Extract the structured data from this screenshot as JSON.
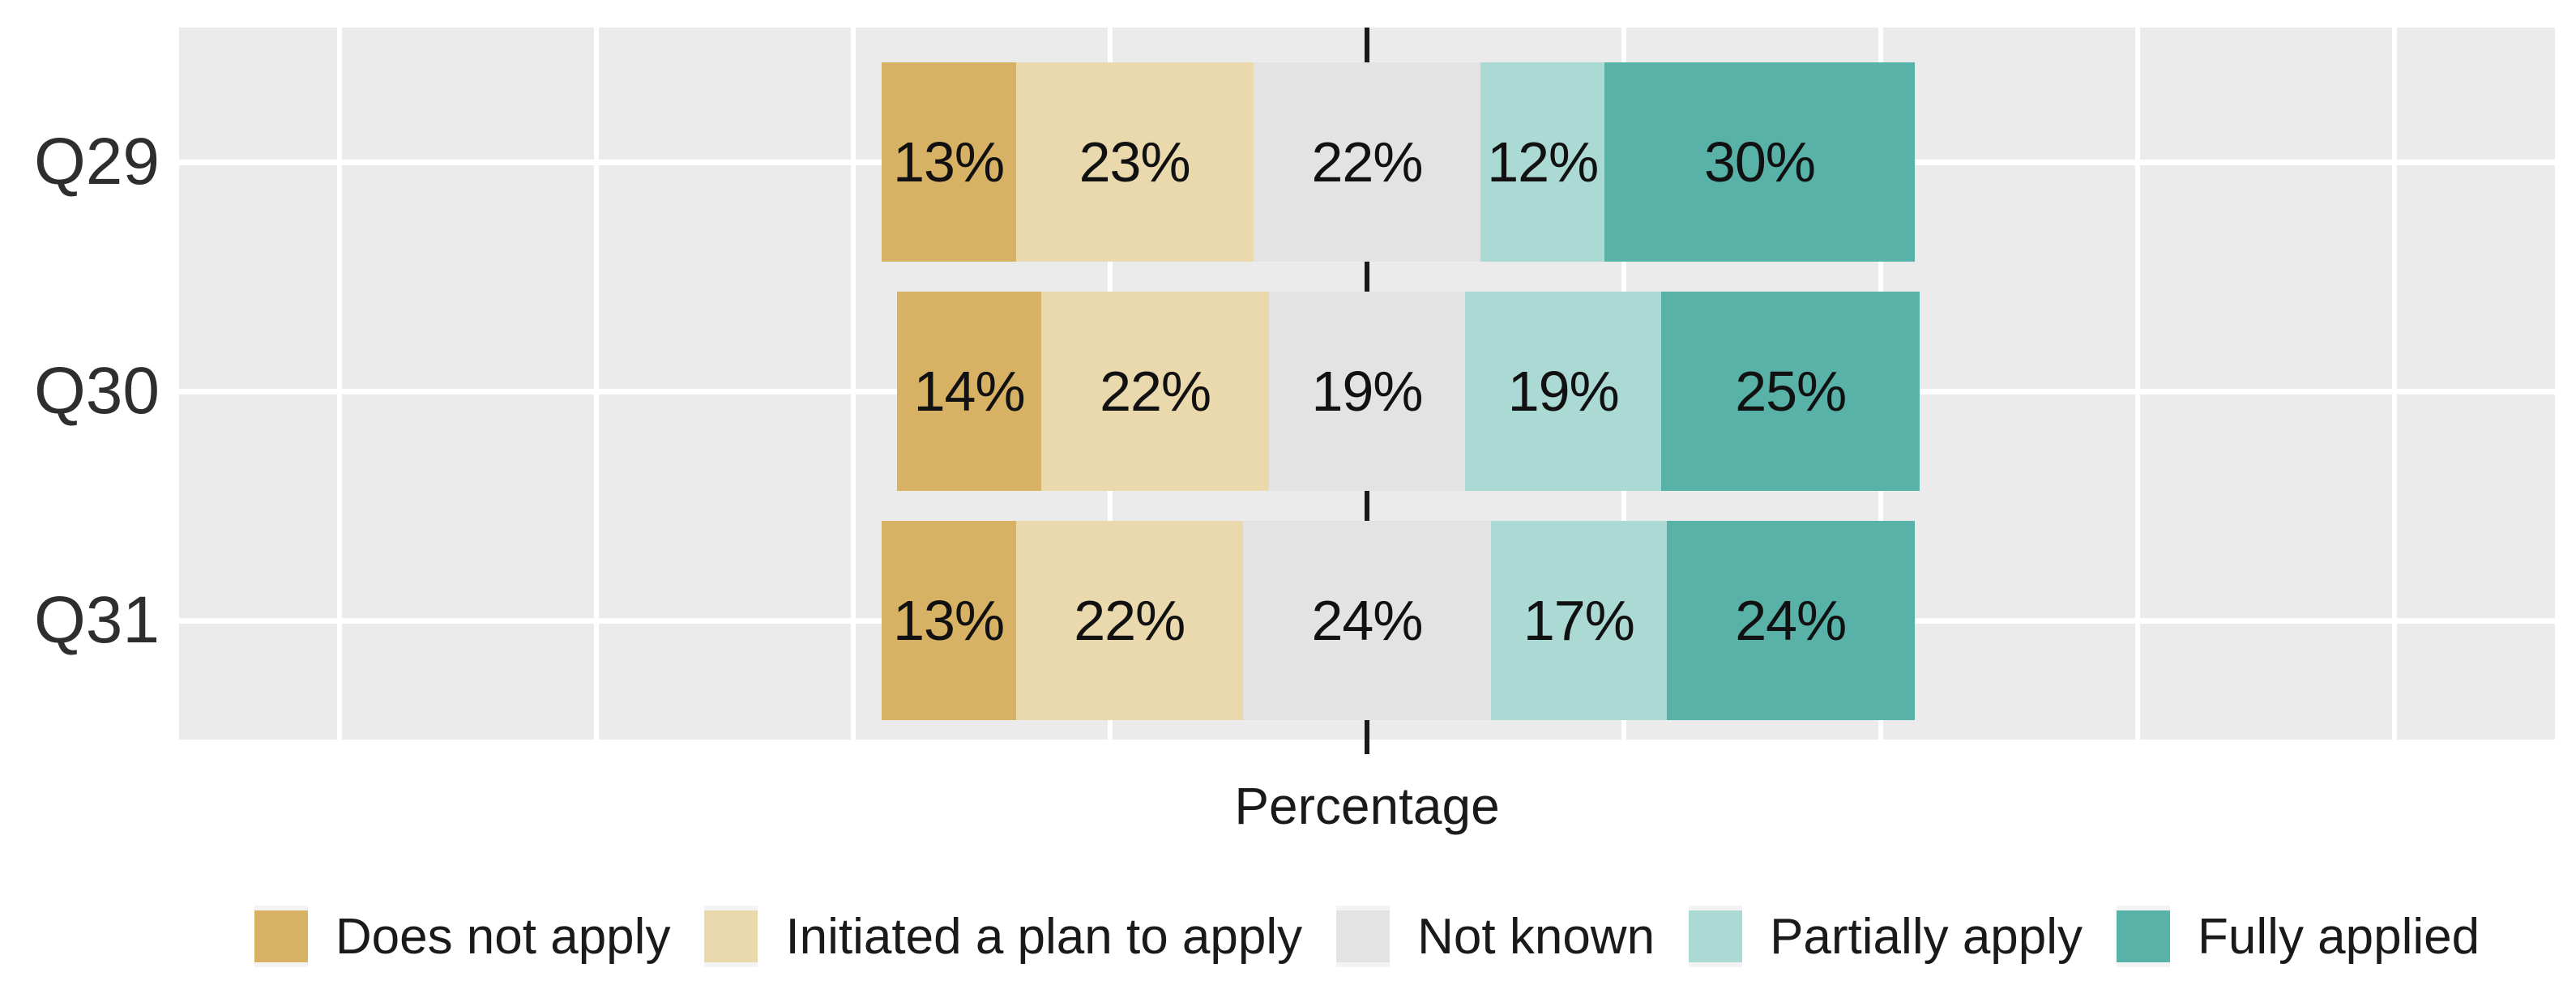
{
  "chart_data": {
    "type": "bar",
    "subtype": "diverging-stacked-likert-horizontal",
    "title": "",
    "xlabel": "Percentage",
    "ylabel": "",
    "categories": [
      "Q29",
      "Q30",
      "Q31"
    ],
    "series": [
      {
        "name": "Does not apply",
        "color": "#d7b164",
        "values": [
          13,
          14,
          13
        ]
      },
      {
        "name": "Initiated a plan to apply",
        "color": "#ebd9ae",
        "values": [
          23,
          22,
          22
        ]
      },
      {
        "name": "Not known",
        "color": "#e3e3e3",
        "values": [
          22,
          19,
          24
        ]
      },
      {
        "name": "Partially apply",
        "color": "#abd9d3",
        "values": [
          12,
          19,
          17
        ]
      },
      {
        "name": "Fully applied",
        "color": "#58b2a8",
        "values": [
          30,
          25,
          24
        ]
      }
    ],
    "value_suffix": "%",
    "bar_labels": [
      [
        "13%",
        "23%",
        "22%",
        "12%",
        "30%"
      ],
      [
        "14%",
        "22%",
        "19%",
        "19%",
        "25%"
      ],
      [
        "13%",
        "22%",
        "24%",
        "17%",
        "24%"
      ]
    ],
    "axis": {
      "center_value": 0,
      "gridline_step_percent": 25,
      "gridlines_percent": [
        -100,
        -75,
        -50,
        -25,
        0,
        25,
        50,
        75,
        100
      ],
      "tick_labels_shown": false
    },
    "center_line": {
      "style": "dashed",
      "color": "#1a1a1a"
    },
    "legend_position": "bottom",
    "colors": {
      "panel_bg": "#ebebeb",
      "gridline": "#ffffff",
      "bar_label_text": "#111111",
      "axis_text": "#2e2e2e",
      "legend_text": "#1a1a1a"
    }
  }
}
